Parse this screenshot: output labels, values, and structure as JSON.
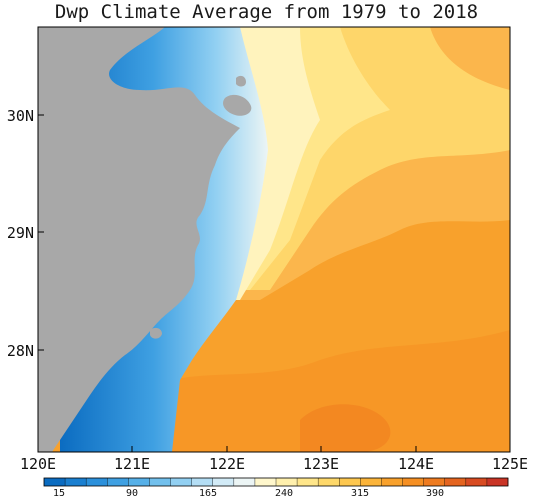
{
  "title": "Dwp Climate Average from 1979 to 2018",
  "lat_labels": [
    "30N",
    "29N",
    "28N"
  ],
  "lon_labels": [
    "120E",
    "121E",
    "122E",
    "123E",
    "124E",
    "125E"
  ],
  "colorbar": {
    "labels": [
      "15",
      "90",
      "165",
      "240",
      "315",
      "390"
    ],
    "colors": [
      "#0b6cc1",
      "#1a7fd0",
      "#2b90db",
      "#3fa0e2",
      "#56b0e8",
      "#72c0ed",
      "#92d0f2",
      "#b4def5",
      "#d2ebf7",
      "#ecf5f5",
      "#fff7cc",
      "#fff0ad",
      "#ffe68a",
      "#fed86a",
      "#fdc74f",
      "#fbb43a",
      "#f8a12c",
      "#f58f23",
      "#ee7b20",
      "#e4641f",
      "#d84b22",
      "#c93426"
    ]
  },
  "land_color": "#a8a8a8",
  "colors": {
    "far_sea": "#f59a2a",
    "mid_sea": "#fbb64c",
    "near_sea": "#fed66a",
    "edge_sea": "#fff3bd",
    "hotspot": "#ee7b20"
  }
}
